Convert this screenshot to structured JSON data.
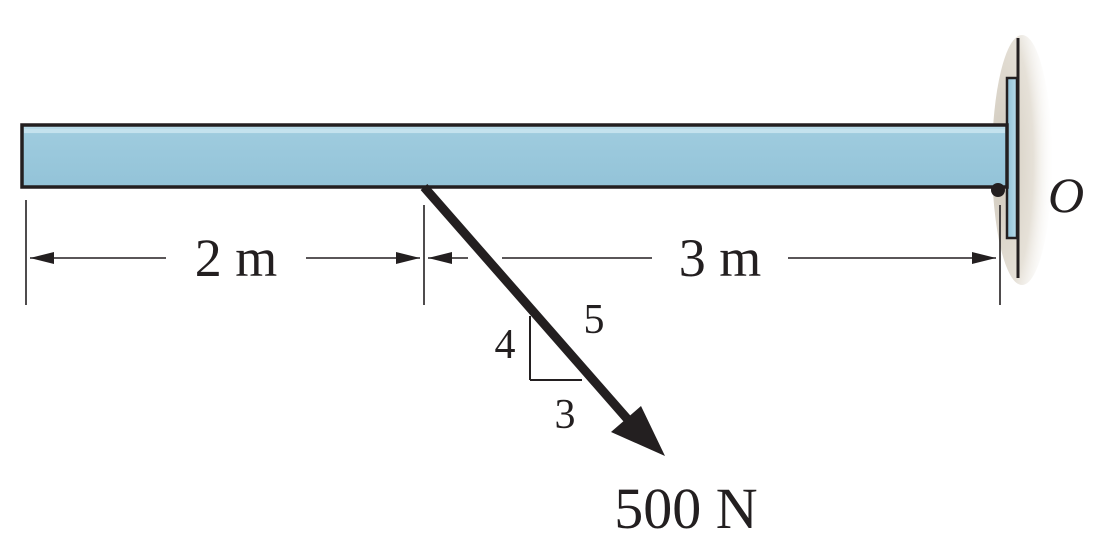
{
  "figure": {
    "support_point_label": "O",
    "dimensions": {
      "left_span": "2 m",
      "right_span": "3 m"
    },
    "slope_triangle": {
      "rise": "4",
      "run": "3",
      "hypotenuse": "5"
    },
    "force": {
      "magnitude_label": "500 N"
    },
    "colors": {
      "beam_fill": "#9ecbde",
      "beam_highlight": "#c4e2ee",
      "outline": "#231f20",
      "wall_shadow": "#d8d2c6"
    }
  }
}
